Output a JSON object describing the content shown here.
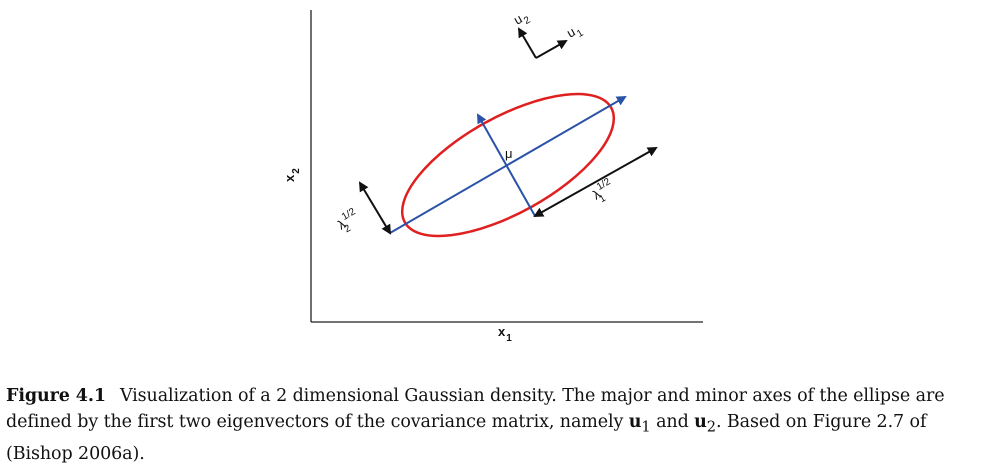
{
  "figure": {
    "x_axis_label": "x",
    "x_axis_sub": "1",
    "y_axis_label": "x",
    "y_axis_sub": "2",
    "mu_label": "μ",
    "u1_label": "u",
    "u1_sub": "1",
    "u2_label": "u",
    "u2_sub": "2",
    "lambda1_label": "λ",
    "lambda1_sup": "1/2",
    "lambda1_sub": "1",
    "lambda2_label": "λ",
    "lambda2_sup": "1/2",
    "lambda2_sub": "2",
    "colors": {
      "ellipse": "#e02020",
      "axes_arrows": "#2a52a8",
      "black_arrows": "#111111"
    }
  },
  "caption": {
    "label": "Figure 4.1",
    "part1": "Visualization of a 2 dimensional Gaussian density. The major and minor axes of the ellipse are defined by the first two eigenvectors of the covariance matrix, namely ",
    "u1": "u",
    "u1_sub": "1",
    "and": " and ",
    "u2": "u",
    "u2_sub": "2",
    "part2": ". Based on Figure 2.7 of (Bishop 2006a)."
  }
}
